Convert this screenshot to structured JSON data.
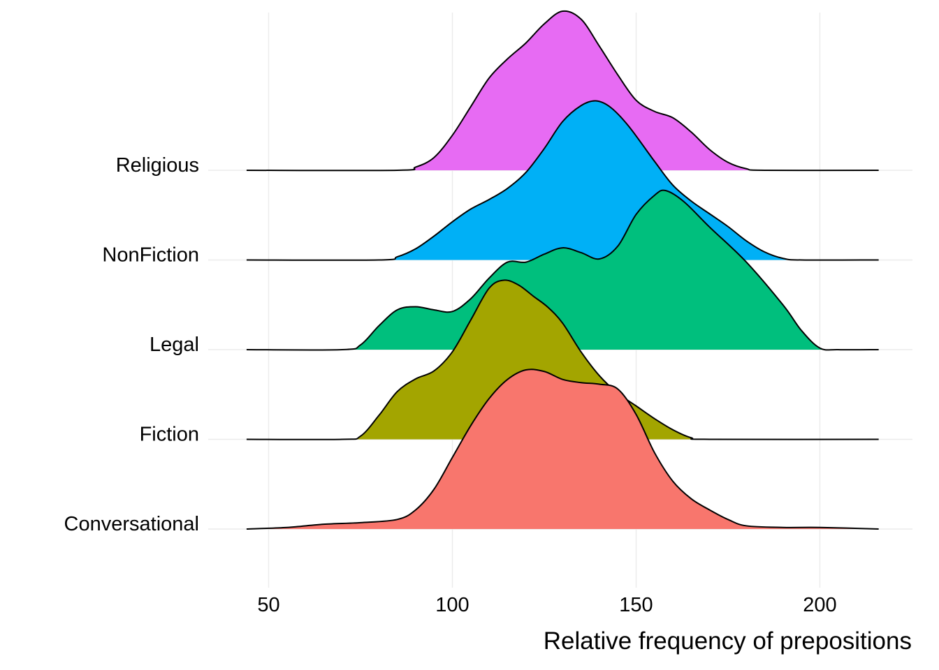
{
  "chart_data": {
    "type": "ridgeline",
    "xlabel": "Relative frequency of prepositions",
    "ylabel": "",
    "xlim": [
      44,
      216
    ],
    "x_ticks": [
      50,
      100,
      150,
      200
    ],
    "x_tick_labels": [
      "50",
      "100",
      "150",
      "200"
    ],
    "grid": true,
    "legend": "none",
    "categories": [
      "Conversational",
      "Fiction",
      "Legal",
      "NonFiction",
      "Religious"
    ],
    "series": [
      {
        "name": "Conversational",
        "color": "#F8766D",
        "density_points": [
          [
            44,
            0
          ],
          [
            55,
            0.01
          ],
          [
            65,
            0.03
          ],
          [
            75,
            0.04
          ],
          [
            85,
            0.06
          ],
          [
            90,
            0.12
          ],
          [
            95,
            0.25
          ],
          [
            100,
            0.45
          ],
          [
            105,
            0.65
          ],
          [
            110,
            0.82
          ],
          [
            115,
            0.94
          ],
          [
            120,
            1.0
          ],
          [
            125,
            0.99
          ],
          [
            130,
            0.94
          ],
          [
            135,
            0.92
          ],
          [
            140,
            0.91
          ],
          [
            145,
            0.88
          ],
          [
            150,
            0.72
          ],
          [
            155,
            0.48
          ],
          [
            160,
            0.3
          ],
          [
            165,
            0.19
          ],
          [
            170,
            0.12
          ],
          [
            175,
            0.06
          ],
          [
            180,
            0.02
          ],
          [
            190,
            0.01
          ],
          [
            200,
            0.01
          ],
          [
            216,
            0
          ]
        ]
      },
      {
        "name": "Fiction",
        "color": "#A3A500",
        "density_points": [
          [
            44,
            0
          ],
          [
            70,
            0
          ],
          [
            75,
            0.02
          ],
          [
            80,
            0.15
          ],
          [
            85,
            0.3
          ],
          [
            90,
            0.38
          ],
          [
            95,
            0.43
          ],
          [
            100,
            0.55
          ],
          [
            105,
            0.75
          ],
          [
            110,
            0.95
          ],
          [
            114,
            1.0
          ],
          [
            118,
            0.97
          ],
          [
            122,
            0.9
          ],
          [
            126,
            0.83
          ],
          [
            130,
            0.73
          ],
          [
            135,
            0.55
          ],
          [
            140,
            0.4
          ],
          [
            145,
            0.29
          ],
          [
            150,
            0.21
          ],
          [
            155,
            0.13
          ],
          [
            160,
            0.06
          ],
          [
            165,
            0.01
          ],
          [
            170,
            0
          ],
          [
            216,
            0
          ]
        ]
      },
      {
        "name": "Legal",
        "color": "#00BF7D",
        "density_points": [
          [
            44,
            0
          ],
          [
            70,
            0
          ],
          [
            75,
            0.03
          ],
          [
            80,
            0.15
          ],
          [
            85,
            0.25
          ],
          [
            90,
            0.27
          ],
          [
            95,
            0.25
          ],
          [
            100,
            0.24
          ],
          [
            105,
            0.32
          ],
          [
            110,
            0.45
          ],
          [
            115,
            0.55
          ],
          [
            120,
            0.55
          ],
          [
            125,
            0.6
          ],
          [
            130,
            0.64
          ],
          [
            135,
            0.61
          ],
          [
            140,
            0.57
          ],
          [
            145,
            0.65
          ],
          [
            150,
            0.85
          ],
          [
            155,
            0.97
          ],
          [
            158,
            1.0
          ],
          [
            163,
            0.93
          ],
          [
            170,
            0.77
          ],
          [
            180,
            0.55
          ],
          [
            190,
            0.28
          ],
          [
            195,
            0.12
          ],
          [
            200,
            0.01
          ],
          [
            205,
            0
          ],
          [
            216,
            0
          ]
        ]
      },
      {
        "name": "NonFiction",
        "color": "#00B0F6",
        "density_points": [
          [
            44,
            0
          ],
          [
            80,
            0
          ],
          [
            85,
            0.02
          ],
          [
            90,
            0.07
          ],
          [
            95,
            0.15
          ],
          [
            100,
            0.24
          ],
          [
            105,
            0.32
          ],
          [
            110,
            0.38
          ],
          [
            115,
            0.45
          ],
          [
            120,
            0.55
          ],
          [
            125,
            0.7
          ],
          [
            130,
            0.87
          ],
          [
            135,
            0.97
          ],
          [
            139,
            1.0
          ],
          [
            143,
            0.96
          ],
          [
            148,
            0.84
          ],
          [
            155,
            0.62
          ],
          [
            160,
            0.47
          ],
          [
            165,
            0.37
          ],
          [
            170,
            0.29
          ],
          [
            175,
            0.21
          ],
          [
            180,
            0.12
          ],
          [
            185,
            0.05
          ],
          [
            190,
            0.01
          ],
          [
            195,
            0
          ],
          [
            216,
            0
          ]
        ]
      },
      {
        "name": "Religious",
        "color": "#E76BF3",
        "density_points": [
          [
            44,
            0
          ],
          [
            85,
            0
          ],
          [
            90,
            0.02
          ],
          [
            95,
            0.08
          ],
          [
            100,
            0.22
          ],
          [
            105,
            0.4
          ],
          [
            110,
            0.58
          ],
          [
            115,
            0.7
          ],
          [
            120,
            0.8
          ],
          [
            125,
            0.92
          ],
          [
            130,
            1.0
          ],
          [
            135,
            0.95
          ],
          [
            140,
            0.78
          ],
          [
            145,
            0.6
          ],
          [
            150,
            0.44
          ],
          [
            155,
            0.37
          ],
          [
            160,
            0.33
          ],
          [
            165,
            0.24
          ],
          [
            170,
            0.13
          ],
          [
            175,
            0.05
          ],
          [
            180,
            0.01
          ],
          [
            185,
            0
          ],
          [
            216,
            0
          ]
        ]
      }
    ]
  }
}
